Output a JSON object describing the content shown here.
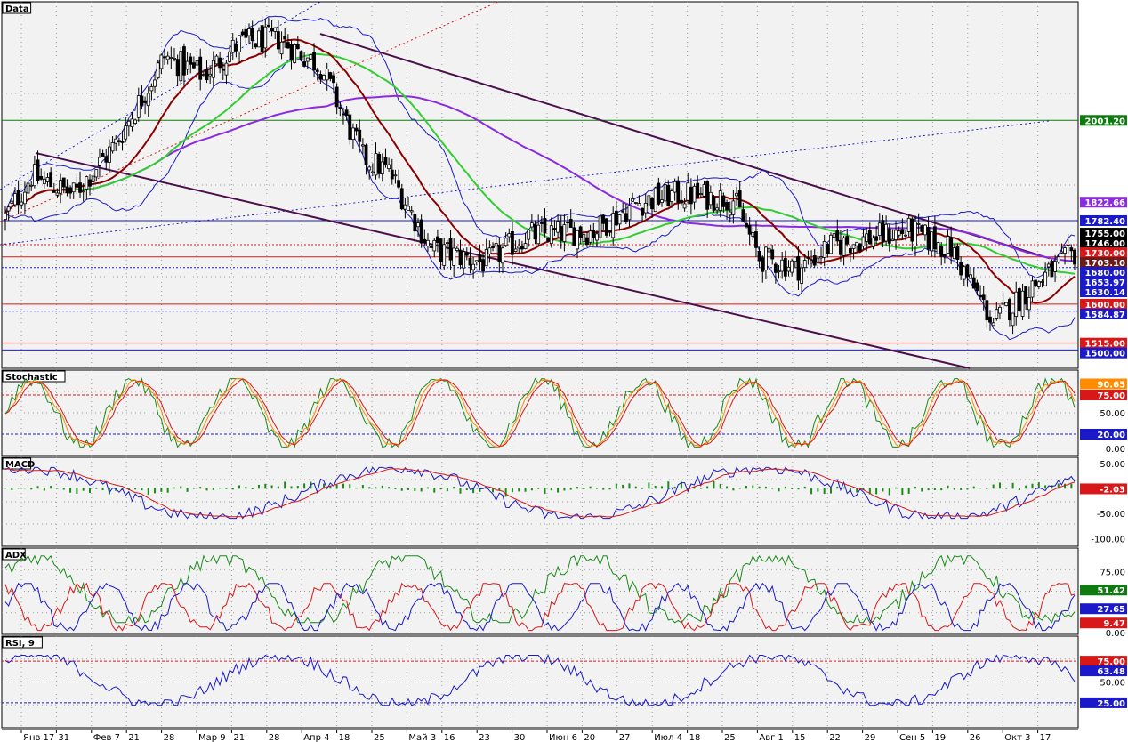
{
  "chart_data": [
    {
      "panel": "Data",
      "type": "candlestick",
      "title": "Data",
      "y_range": [
        1460,
        2260
      ],
      "tick_labels_right": [
        {
          "label": "2001.20",
          "value": 2001.2,
          "color": "#0f7a0f"
        },
        {
          "label": "1822.66",
          "value": 1822.66,
          "color": "#8a2be2"
        },
        {
          "label": "1782.40",
          "value": 1782.4,
          "color": "#1a1ac8"
        },
        {
          "label": "1755.00",
          "value": 1755,
          "color": "#000000"
        },
        {
          "label": "1746.00",
          "value": 1746,
          "color": "#000000"
        },
        {
          "label": "1730.00",
          "value": 1730,
          "color": "#d81818"
        },
        {
          "label": "1703.10",
          "value": 1703.1,
          "color": "#6a1a1a"
        },
        {
          "label": "1680.00",
          "value": 1680,
          "color": "#1a1ac8"
        },
        {
          "label": "1653.97",
          "value": 1653.97,
          "color": "#1a1ac8"
        },
        {
          "label": "1630.14",
          "value": 1630.14,
          "color": "#1a1ac8"
        },
        {
          "label": "1600.00",
          "value": 1600,
          "color": "#d81818"
        },
        {
          "label": "1584.87",
          "value": 1584.87,
          "color": "#1a1ac8"
        },
        {
          "label": "1515.00",
          "value": 1515,
          "color": "#d81818"
        },
        {
          "label": "1500.00",
          "value": 1500,
          "color": "#1a1ac8"
        }
      ],
      "horizontal_levels": [
        {
          "value": 2001.2,
          "color": "#0f7a0f",
          "dash": false
        },
        {
          "value": 1782.4,
          "color": "#1a1ac8",
          "dash": false
        },
        {
          "value": 1730,
          "color": "#d81818",
          "dash": true
        },
        {
          "value": 1703.1,
          "color": "#c02020",
          "dash": false
        },
        {
          "value": 1680,
          "color": "#1a1ac8",
          "dash": true
        },
        {
          "value": 1600,
          "color": "#d81818",
          "dash": false
        },
        {
          "value": 1584.87,
          "color": "#1a1ac8",
          "dash": true
        },
        {
          "value": 1515,
          "color": "#d81818",
          "dash": false
        },
        {
          "value": 1500,
          "color": "#1a1ac8",
          "dash": false
        }
      ],
      "indicators": [
        "Bollinger Bands",
        "Moving Average (red)",
        "Moving Average (green)",
        "Moving Average (purple)",
        "Trend channel lines"
      ]
    },
    {
      "panel": "Stochastic",
      "type": "line",
      "title": "Stochastic",
      "y_range": [
        -10,
        110
      ],
      "tick_labels_right": [
        {
          "label": "90.65",
          "value": 90.65,
          "color": "#ff8c00"
        },
        {
          "label": "75.00",
          "value": 75,
          "color": "#d81818"
        },
        {
          "label": "50.00",
          "value": 50,
          "color": ""
        },
        {
          "label": "20.00",
          "value": 20,
          "color": "#1a1ac8"
        },
        {
          "label": "0.00",
          "value": 0,
          "color": ""
        }
      ],
      "levels": [
        75,
        20
      ]
    },
    {
      "panel": "MACD",
      "type": "line",
      "title": "MACD",
      "y_range": [
        -115,
        60
      ],
      "tick_labels_right": [
        {
          "label": "50.00",
          "value": 50,
          "color": ""
        },
        {
          "label": "-2.03",
          "value": -2.03,
          "color": "#d81818"
        },
        {
          "label": "-50.00",
          "value": -50,
          "color": ""
        },
        {
          "label": "-100.00",
          "value": -100,
          "color": ""
        }
      ]
    },
    {
      "panel": "ADX",
      "type": "line",
      "title": "ADX",
      "y_range": [
        -5,
        105
      ],
      "tick_labels_right": [
        {
          "label": "75.00",
          "value": 75,
          "color": ""
        },
        {
          "label": "51.42",
          "value": 51.42,
          "color": "#0f7a0f"
        },
        {
          "label": "27.65",
          "value": 27.65,
          "color": "#1a1ac8"
        },
        {
          "label": "9.47",
          "value": 9.47,
          "color": "#d81818"
        },
        {
          "label": "0.00",
          "value": 0,
          "color": ""
        }
      ]
    },
    {
      "panel": "RSI",
      "type": "line",
      "title": "RSI, 9",
      "y_range": [
        -5,
        105
      ],
      "tick_labels_right": [
        {
          "label": "75.00",
          "value": 75,
          "color": "#d81818"
        },
        {
          "label": "63.48",
          "value": 63.48,
          "color": "#1a1ac8"
        },
        {
          "label": "50.00",
          "value": 50,
          "color": ""
        },
        {
          "label": "25.00",
          "value": 25,
          "color": "#1a1ac8"
        }
      ],
      "levels": [
        75,
        25
      ]
    }
  ],
  "x_axis_labels": [
    "Янв 17",
    "31",
    "Фев 7",
    "21",
    "28",
    "Мар 9",
    "21",
    "28",
    "Апр 4",
    "18",
    "25",
    "Май 3",
    "16",
    "23",
    "30",
    "Июн 6",
    "20",
    "27",
    "Июл 4",
    "18",
    "25",
    "Авг 1",
    "15",
    "22",
    "29",
    "Сен 5",
    "19",
    "26",
    "Окт 3",
    "17"
  ],
  "colors": {
    "up_candle": "#ffffff",
    "down_candle": "#000000",
    "bollinger": "#1a1ac8",
    "ma_red": "#8b0000",
    "ma_green": "#32cd32",
    "ma_purple": "#8a2be2",
    "channel": "#4b0f4b"
  }
}
